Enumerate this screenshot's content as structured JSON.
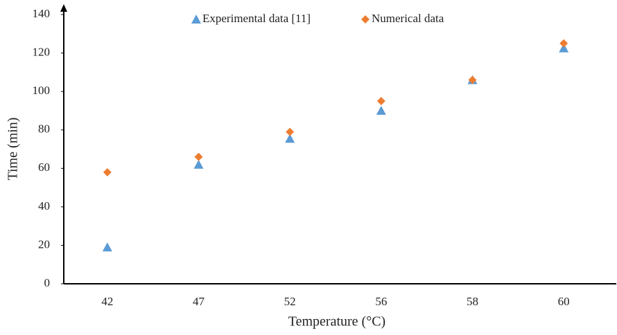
{
  "chart_data": {
    "type": "scatter",
    "x_label": "Temperature (°C)",
    "y_label": "Time (min)",
    "categories": [
      "42",
      "47",
      "52",
      "56",
      "58",
      "60"
    ],
    "series": [
      {
        "name": "Experimental data [11]",
        "color": "#5b9bd5",
        "marker": "triangle",
        "values": [
          19,
          62,
          75.5,
          90,
          106,
          122.5
        ]
      },
      {
        "name": "Numerical data",
        "color": "#ed7d31",
        "marker": "diamond",
        "values": [
          58,
          66,
          79,
          95,
          106,
          125
        ]
      }
    ],
    "ylim": [
      0,
      140
    ],
    "yticks": [
      0,
      20,
      40,
      60,
      80,
      100,
      120,
      140
    ],
    "grid": false
  }
}
